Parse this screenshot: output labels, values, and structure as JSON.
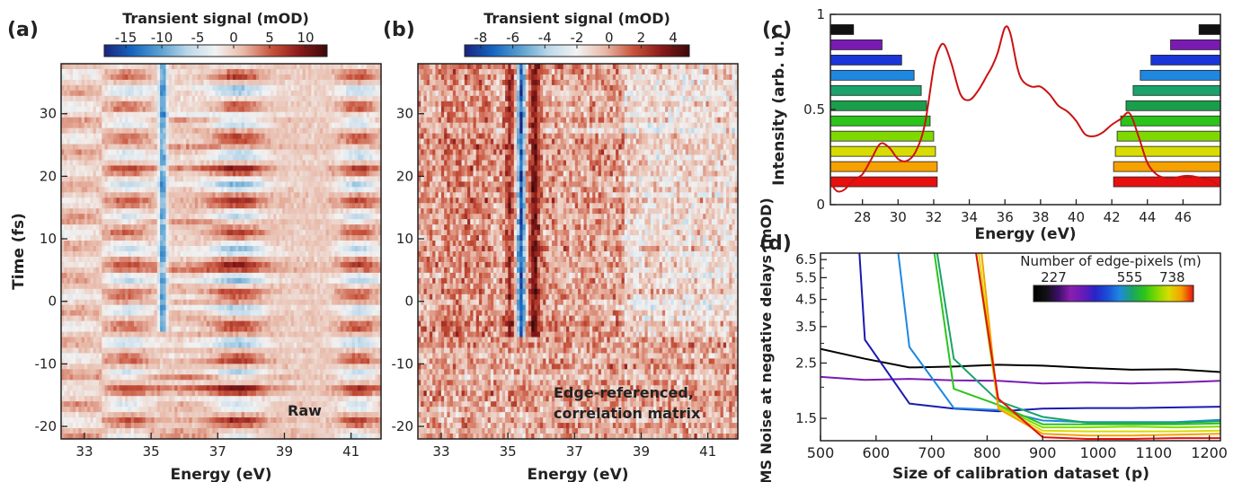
{
  "colors": {
    "diverging": [
      "#1a237e",
      "#1565c0",
      "#5aa0d0",
      "#bcd8ea",
      "#f2f2f2",
      "#e8b9a8",
      "#c8533c",
      "#8b1a1a",
      "#3a0a0a"
    ],
    "spectrum": "#cc1111"
  },
  "chart_data": [
    {
      "id": "a",
      "type": "heatmap",
      "panel_label": "(a)",
      "colorbar_title": "Transient signal (mOD)",
      "colorbar_ticks": [
        "-15",
        "-10",
        "-5",
        "0",
        "5",
        "10"
      ],
      "colorbar_values": [
        -15,
        -10,
        -5,
        0,
        5,
        10
      ],
      "clim": [
        -18,
        13
      ],
      "xlabel": "Energy (eV)",
      "ylabel": "Time (fs)",
      "xlim": [
        32.3,
        41.9
      ],
      "ylim": [
        -22,
        38
      ],
      "xticks": [
        33,
        35,
        37,
        39,
        41
      ],
      "xtick_labels": [
        "33",
        "35",
        "37",
        "39",
        "41"
      ],
      "yticks": [
        -20,
        -10,
        0,
        10,
        20,
        30
      ],
      "ytick_labels": [
        "-20",
        "-10",
        "0",
        "10",
        "20",
        "30"
      ],
      "annotation": [
        "Raw"
      ],
      "features": {
        "bleach_line_energy": 35.35,
        "bleach_line_time_range": [
          -5,
          38
        ],
        "positive_bands_energy": [
          34.3,
          37.6,
          41.2
        ]
      }
    },
    {
      "id": "b",
      "type": "heatmap",
      "panel_label": "(b)",
      "colorbar_title": "Transient signal (mOD)",
      "colorbar_ticks": [
        "-8",
        "-6",
        "-4",
        "-2",
        "0",
        "2",
        "4"
      ],
      "colorbar_values": [
        -8,
        -6,
        -4,
        -2,
        0,
        2,
        4
      ],
      "clim": [
        -9,
        5
      ],
      "xlabel": "Energy (eV)",
      "xlim": [
        32.3,
        41.9
      ],
      "ylim": [
        -22,
        38
      ],
      "xticks": [
        33,
        35,
        37,
        39,
        41
      ],
      "xtick_labels": [
        "33",
        "35",
        "37",
        "39",
        "41"
      ],
      "yticks": [
        -20,
        -10,
        0,
        10,
        20,
        30
      ],
      "ytick_labels": [
        "-20",
        "-10",
        "0",
        "10",
        "20",
        "30"
      ],
      "annotation": [
        "Edge-referenced,",
        "correlation matrix"
      ],
      "features": {
        "bleach_line_energy": 35.4,
        "bleach_line_time_range": [
          -6,
          38
        ],
        "positive_band_energy": 35.8
      }
    },
    {
      "id": "c",
      "type": "line",
      "panel_label": "(c)",
      "xlabel": "Energy (eV)",
      "ylabel": "Intensity  (arb. u.)",
      "xlim": [
        26.2,
        48.1
      ],
      "ylim": [
        0,
        1
      ],
      "xticks": [
        28,
        30,
        32,
        34,
        36,
        38,
        40,
        42,
        44,
        46
      ],
      "xtick_labels": [
        "28",
        "30",
        "32",
        "34",
        "36",
        "38",
        "40",
        "42",
        "44",
        "46"
      ],
      "yticks": [
        0,
        0.5,
        1
      ],
      "ytick_labels": [
        "0",
        "0.5",
        "1"
      ],
      "x": [
        26.3,
        26.6,
        27.0,
        27.5,
        28.0,
        28.5,
        29.0,
        29.5,
        30.0,
        30.5,
        31.0,
        31.5,
        32.0,
        32.3,
        32.6,
        33.0,
        33.5,
        34.0,
        34.5,
        35.0,
        35.3,
        35.6,
        36.0,
        36.3,
        36.7,
        37.0,
        37.5,
        38.0,
        38.5,
        39.0,
        39.5,
        40.0,
        40.5,
        41.0,
        41.5,
        42.0,
        42.5,
        43.0,
        43.5,
        44.0,
        44.5,
        45.0,
        45.5,
        46.0,
        46.5,
        47.0,
        47.5,
        48.0
      ],
      "y": [
        0.1,
        0.07,
        0.08,
        0.13,
        0.16,
        0.24,
        0.32,
        0.3,
        0.24,
        0.23,
        0.28,
        0.42,
        0.72,
        0.82,
        0.84,
        0.74,
        0.58,
        0.55,
        0.6,
        0.68,
        0.73,
        0.8,
        0.93,
        0.9,
        0.72,
        0.65,
        0.62,
        0.62,
        0.58,
        0.52,
        0.49,
        0.44,
        0.37,
        0.36,
        0.38,
        0.42,
        0.45,
        0.48,
        0.36,
        0.22,
        0.16,
        0.14,
        0.14,
        0.15,
        0.15,
        0.14,
        0.13,
        0.1
      ],
      "edge_pixel_bars": {
        "y_levels": [
          0.12,
          0.2,
          0.28,
          0.36,
          0.44,
          0.52,
          0.6,
          0.68,
          0.76,
          0.84,
          0.92
        ],
        "colors": [
          "#e61010",
          "#f5a100",
          "#d8dc00",
          "#7fd900",
          "#2bc419",
          "#1b9e4b",
          "#1aa36a",
          "#1e88e0",
          "#1a35d8",
          "#7a1ab3",
          "#111111"
        ],
        "left_end": [
          32.2,
          32.2,
          32.1,
          32.0,
          31.8,
          31.6,
          31.3,
          30.9,
          30.2,
          29.1,
          27.5
        ],
        "right_start": [
          42.1,
          42.1,
          42.2,
          42.3,
          42.5,
          42.8,
          43.2,
          43.6,
          44.2,
          45.3,
          46.9
        ]
      }
    },
    {
      "id": "d",
      "type": "line",
      "panel_label": "(d)",
      "xlabel": "Size of calibration dataset (p)",
      "ylabel": "RMS Noise at negative delays (mOD)",
      "xlim": [
        500,
        1220
      ],
      "ylim": [
        1.22,
        6.9
      ],
      "yscale": "log",
      "xticks": [
        500,
        600,
        700,
        800,
        900,
        1000,
        1100,
        1200
      ],
      "xtick_labels": [
        "500",
        "600",
        "700",
        "800",
        "900",
        "1000",
        "1100",
        "1200"
      ],
      "yticks": [
        1.5,
        2.5,
        3.5,
        4.5,
        5.5,
        6.5
      ],
      "ytick_labels": [
        "1.5",
        "2.5",
        "3.5",
        "4.5",
        "5.5",
        "6.5"
      ],
      "minor_yticks": [
        2,
        3,
        4,
        5,
        6
      ],
      "legend_title": "Number of edge-pixels (m)",
      "colorbar_ticks": [
        "227",
        "555",
        "738"
      ],
      "colorbar_values": [
        227,
        555,
        738
      ],
      "colorbar_range": [
        140,
        830
      ],
      "colorbar_stops": [
        "#000000",
        "#111111",
        "#3a0f66",
        "#8a1fb0",
        "#6a1ab8",
        "#2a23c8",
        "#1a4ed8",
        "#1e88e0",
        "#1aa36a",
        "#2bc419",
        "#7fd900",
        "#d8dc00",
        "#f5a100",
        "#e61010"
      ],
      "series": [
        {
          "color": "#000000",
          "x": [
            500,
            580,
            660,
            740,
            820,
            900,
            980,
            1060,
            1140,
            1220
          ],
          "y": [
            2.85,
            2.6,
            2.4,
            2.42,
            2.46,
            2.44,
            2.39,
            2.35,
            2.36,
            2.3
          ]
        },
        {
          "color": "#7a1ab3",
          "x": [
            500,
            580,
            660,
            740,
            820,
            900,
            980,
            1060,
            1140,
            1220
          ],
          "y": [
            2.2,
            2.14,
            2.16,
            2.13,
            2.12,
            2.07,
            2.09,
            2.07,
            2.09,
            2.12
          ]
        },
        {
          "color": "#1a1ab0",
          "x": [
            570,
            580,
            660,
            740,
            820,
            900,
            980,
            1060,
            1140,
            1220
          ],
          "y": [
            6.9,
            3.1,
            1.72,
            1.64,
            1.6,
            1.64,
            1.65,
            1.65,
            1.66,
            1.67
          ]
        },
        {
          "color": "#1e88e0",
          "x": [
            640,
            660,
            740,
            820,
            900,
            980,
            1060,
            1140,
            1220
          ],
          "y": [
            6.9,
            2.9,
            1.65,
            1.62,
            1.47,
            1.45,
            1.45,
            1.45,
            1.48
          ]
        },
        {
          "color": "#1aa36a",
          "x": [
            710,
            740,
            820,
            900,
            980,
            1060,
            1140,
            1220
          ],
          "y": [
            6.9,
            2.6,
            1.76,
            1.52,
            1.44,
            1.44,
            1.44,
            1.46
          ]
        },
        {
          "color": "#2bc419",
          "x": [
            705,
            740,
            820,
            900,
            980,
            1060,
            1140,
            1220
          ],
          "y": [
            6.9,
            1.97,
            1.7,
            1.42,
            1.42,
            1.42,
            1.42,
            1.43
          ]
        },
        {
          "color": "#7fd900",
          "x": [
            780,
            820,
            900,
            980,
            1060,
            1140,
            1220
          ],
          "y": [
            6.9,
            1.68,
            1.38,
            1.38,
            1.39,
            1.38,
            1.39
          ]
        },
        {
          "color": "#d8dc00",
          "x": [
            785,
            820,
            900,
            980,
            1060,
            1140,
            1220
          ],
          "y": [
            6.9,
            1.66,
            1.34,
            1.33,
            1.33,
            1.33,
            1.34
          ]
        },
        {
          "color": "#f5a100",
          "x": [
            790,
            820,
            900,
            980,
            1060,
            1140,
            1220
          ],
          "y": [
            6.9,
            1.64,
            1.3,
            1.28,
            1.28,
            1.29,
            1.3
          ]
        },
        {
          "color": "#e61010",
          "x": [
            780,
            820,
            900,
            980,
            1060,
            1140,
            1220
          ],
          "y": [
            6.9,
            1.8,
            1.26,
            1.24,
            1.24,
            1.25,
            1.25
          ]
        }
      ]
    }
  ]
}
